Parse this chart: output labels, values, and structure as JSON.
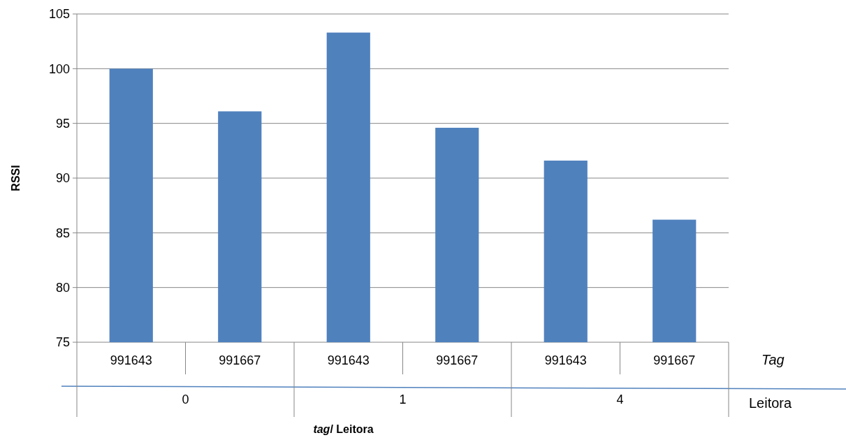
{
  "chart_data": {
    "type": "bar",
    "xlabel": "tag/ Leitora",
    "ylabel": "RSSI",
    "categories": [
      "991643",
      "991667",
      "991643",
      "991667",
      "991643",
      "991667"
    ],
    "values": [
      100.0,
      96.1,
      103.3,
      94.6,
      91.6,
      86.2
    ],
    "color": "#4f81bd",
    "ylim": [
      75,
      105
    ],
    "yticks": [
      75,
      80,
      85,
      90,
      95,
      100,
      105
    ],
    "grid": "y",
    "annotations": [
      "Tag",
      "Leitora",
      "0",
      "1",
      "4"
    ]
  }
}
